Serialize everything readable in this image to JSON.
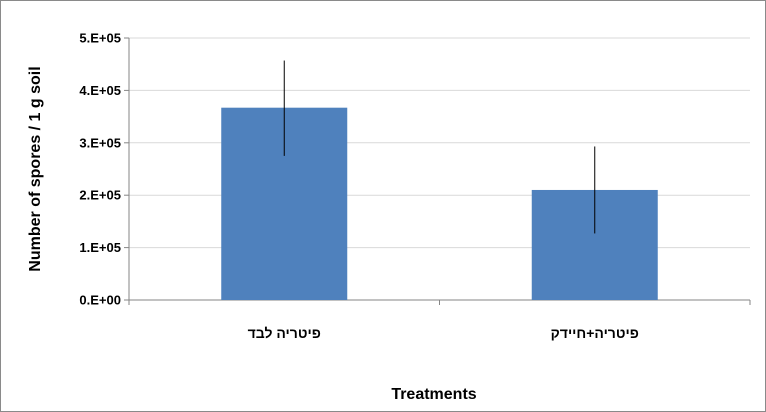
{
  "chart_data": {
    "type": "bar",
    "title": "",
    "xlabel": "Treatments",
    "ylabel": "Number of spores / 1 g  soil",
    "categories": [
      "פיטריה לבד",
      "פיטריה+חיידק"
    ],
    "values": [
      367000,
      210000
    ],
    "error_bars": [
      {
        "low": 275000,
        "high": 457000
      },
      {
        "low": 127000,
        "high": 293000
      }
    ],
    "ylim": [
      0,
      500000
    ],
    "yticks": [
      0,
      100000,
      200000,
      300000,
      400000,
      500000
    ],
    "ytick_labels": [
      "0.E+00",
      "1.E+05",
      "2.E+05",
      "3.E+05",
      "4.E+05",
      "5.E+05"
    ],
    "grid": true,
    "legend": "none",
    "bar_color": "#4F81BD",
    "grid_color": "#D9D9D9",
    "axis_color": "#868686"
  }
}
